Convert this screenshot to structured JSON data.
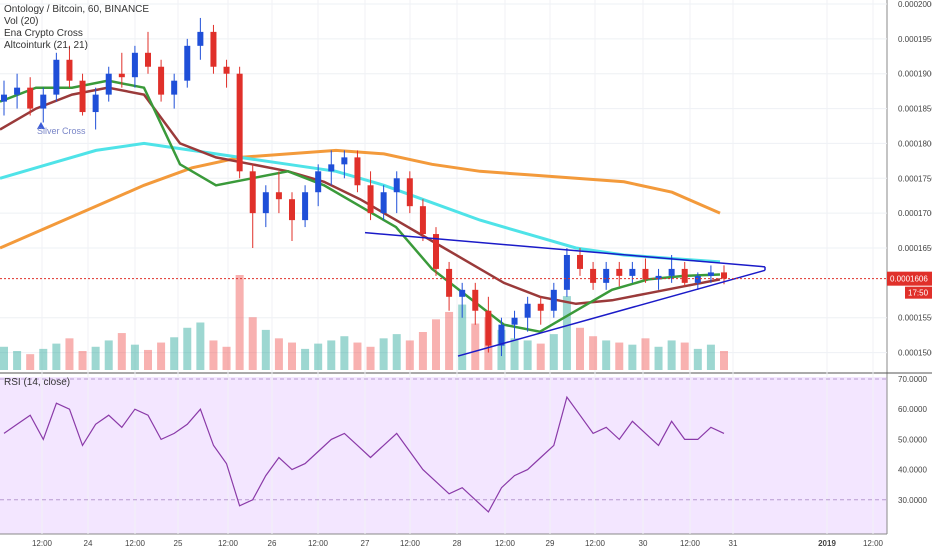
{
  "legend": {
    "title": "Ontology / Bitcoin, 60, BINANCE",
    "vol": "Vol (20)",
    "ena": "Ena Crypto Cross",
    "alt": "Altcointurk (21, 21)"
  },
  "rsi_legend": "RSI (14, close)",
  "annotations": {
    "silver_cross": "Silver Cross"
  },
  "price_axis": {
    "ticks": [
      "0.0002000",
      "0.0001950",
      "0.0001900",
      "0.0001850",
      "0.0001800",
      "0.0001750",
      "0.0001700",
      "0.0001650",
      "0.0001550",
      "0.0001500"
    ],
    "current_price": "0.0001606",
    "countdown": "17:50"
  },
  "rsi_axis": {
    "ticks": [
      "70.0000",
      "60.0000",
      "50.0000",
      "40.0000",
      "30.0000"
    ]
  },
  "time_axis": {
    "ticks": [
      "12:00",
      "24",
      "12:00",
      "25",
      "12:00",
      "26",
      "12:00",
      "27",
      "12:00",
      "28",
      "12:00",
      "29",
      "12:00",
      "30",
      "12:00",
      "31",
      "2019",
      "12:00"
    ]
  },
  "colors": {
    "up": "#26a69a",
    "down": "#ef5350",
    "candle_up": "#1f4fd8",
    "candle_down": "#e0302a",
    "ma_fast": "#3a9a3a",
    "ma_mid": "#9a3a3a",
    "ma_cyan": "#4fe3e8",
    "ma_orange": "#f39a3b",
    "triangle": "#1a1ac8",
    "rsi_line": "#8a3aa8",
    "rsi_bg": "#f3e6ff",
    "price_tag": "#e0302a"
  },
  "chart_data": {
    "type": "candlestick",
    "title": "Ontology / Bitcoin, 60, BINANCE",
    "ylim": [
      0.0001475,
      0.0002
    ],
    "rsi_ylim": [
      20,
      70
    ],
    "candles": [
      [
        0.000186,
        0.000189,
        0.000184,
        0.000187
      ],
      [
        0.000187,
        0.00019,
        0.000185,
        0.000188
      ],
      [
        0.000188,
        0.0001895,
        0.000184,
        0.000185
      ],
      [
        0.000185,
        0.000188,
        0.000183,
        0.000187
      ],
      [
        0.000187,
        0.000193,
        0.000186,
        0.000192
      ],
      [
        0.000192,
        0.000194,
        0.000188,
        0.000189
      ],
      [
        0.000189,
        0.00019,
        0.000184,
        0.0001845
      ],
      [
        0.0001845,
        0.000188,
        0.000182,
        0.000187
      ],
      [
        0.000187,
        0.000191,
        0.000186,
        0.00019
      ],
      [
        0.00019,
        0.000193,
        0.000188,
        0.0001895
      ],
      [
        0.0001895,
        0.000194,
        0.000188,
        0.000193
      ],
      [
        0.000193,
        0.000196,
        0.00019,
        0.000191
      ],
      [
        0.000191,
        0.000192,
        0.000186,
        0.000187
      ],
      [
        0.000187,
        0.00019,
        0.000185,
        0.000189
      ],
      [
        0.000189,
        0.000195,
        0.000188,
        0.000194
      ],
      [
        0.000194,
        0.000198,
        0.000192,
        0.000196
      ],
      [
        0.000196,
        0.000197,
        0.00019,
        0.000191
      ],
      [
        0.000191,
        0.000192,
        0.000188,
        0.00019
      ],
      [
        0.00019,
        0.000191,
        0.000175,
        0.000176
      ],
      [
        0.000176,
        0.000177,
        0.000165,
        0.00017
      ],
      [
        0.00017,
        0.000174,
        0.000168,
        0.000173
      ],
      [
        0.000173,
        0.000176,
        0.00017,
        0.000172
      ],
      [
        0.000172,
        0.000173,
        0.000166,
        0.000169
      ],
      [
        0.000169,
        0.000174,
        0.000168,
        0.000173
      ],
      [
        0.000173,
        0.000177,
        0.000171,
        0.000176
      ],
      [
        0.000176,
        0.000179,
        0.000174,
        0.000177
      ],
      [
        0.000177,
        0.000179,
        0.000175,
        0.000178
      ],
      [
        0.000178,
        0.000179,
        0.000173,
        0.000174
      ],
      [
        0.000174,
        0.000176,
        0.000169,
        0.00017
      ],
      [
        0.00017,
        0.000174,
        0.000169,
        0.000173
      ],
      [
        0.000173,
        0.000176,
        0.00017,
        0.000175
      ],
      [
        0.000175,
        0.000176,
        0.00017,
        0.000171
      ],
      [
        0.000171,
        0.000172,
        0.000166,
        0.000167
      ],
      [
        0.000167,
        0.000168,
        0.000161,
        0.000162
      ],
      [
        0.000162,
        0.000163,
        0.000156,
        0.000158
      ],
      [
        0.000158,
        0.00016,
        0.000155,
        0.000159
      ],
      [
        0.000159,
        0.00016,
        0.000154,
        0.000156
      ],
      [
        0.000156,
        0.000158,
        0.00015,
        0.000151
      ],
      [
        0.000151,
        0.000155,
        0.0001495,
        0.000154
      ],
      [
        0.000154,
        0.000156,
        0.000152,
        0.000155
      ],
      [
        0.000155,
        0.000158,
        0.000153,
        0.000157
      ],
      [
        0.000157,
        0.000158,
        0.000154,
        0.000156
      ],
      [
        0.000156,
        0.00016,
        0.000155,
        0.000159
      ],
      [
        0.000159,
        0.000165,
        0.000158,
        0.000164
      ],
      [
        0.000164,
        0.000165,
        0.000161,
        0.000162
      ],
      [
        0.000162,
        0.000163,
        0.000159,
        0.00016
      ],
      [
        0.00016,
        0.000163,
        0.000159,
        0.000162
      ],
      [
        0.000162,
        0.000163,
        0.0001595,
        0.000161
      ],
      [
        0.000161,
        0.000163,
        0.00016,
        0.000162
      ],
      [
        0.000162,
        0.0001635,
        0.00016,
        0.0001605
      ],
      [
        0.0001605,
        0.000162,
        0.000159,
        0.000161
      ],
      [
        0.000161,
        0.000164,
        0.00016,
        0.000162
      ],
      [
        0.000162,
        0.000163,
        0.0001595,
        0.00016
      ],
      [
        0.00016,
        0.0001615,
        0.000159,
        0.000161
      ],
      [
        0.000161,
        0.0001625,
        0.00016,
        0.0001615
      ],
      [
        0.0001615,
        0.0001625,
        0.0001598,
        0.0001606
      ]
    ],
    "volumes": [
      22,
      18,
      15,
      20,
      25,
      30,
      18,
      22,
      28,
      35,
      24,
      19,
      26,
      31,
      40,
      45,
      28,
      22,
      90,
      50,
      38,
      30,
      26,
      20,
      25,
      28,
      32,
      26,
      22,
      30,
      34,
      28,
      36,
      48,
      55,
      62,
      44,
      50,
      38,
      30,
      28,
      25,
      34,
      70,
      40,
      32,
      28,
      26,
      24,
      30,
      22,
      28,
      26,
      20,
      24,
      18
    ],
    "rsi": [
      52,
      55,
      58,
      50,
      62,
      60,
      48,
      55,
      58,
      54,
      60,
      58,
      50,
      52,
      55,
      60,
      48,
      42,
      28,
      30,
      38,
      44,
      40,
      42,
      46,
      50,
      52,
      48,
      44,
      48,
      52,
      46,
      40,
      36,
      32,
      34,
      30,
      26,
      34,
      38,
      40,
      44,
      48,
      64,
      58,
      52,
      54,
      50,
      56,
      52,
      48,
      56,
      50,
      50,
      54,
      52
    ],
    "ma_fast": [
      0.000186,
      0.000188,
      0.000188,
      0.000189,
      0.000188,
      0.000177,
      0.000174,
      0.000175,
      0.000176,
      0.000174,
      0.000171,
      0.000168,
      0.000162,
      0.000158,
      0.000154,
      0.000153,
      0.000156,
      0.000159,
      0.0001605,
      0.000161,
      0.0001612
    ],
    "ma_mid": [
      0.000182,
      0.000185,
      0.000187,
      0.000188,
      0.000187,
      0.00018,
      0.000178,
      0.000177,
      0.000176,
      0.0001745,
      0.000172,
      0.000169,
      0.000166,
      0.000163,
      0.00016,
      0.000158,
      0.000157,
      0.0001575,
      0.0001585,
      0.0001595,
      0.0001605
    ],
    "ma_cyan": [
      0.000175,
      0.000177,
      0.000179,
      0.00018,
      0.000179,
      0.000178,
      0.000177,
      0.000176,
      0.000174,
      0.0001715,
      0.000169,
      0.000167,
      0.000165,
      0.000164,
      0.0001635,
      0.000163
    ],
    "ma_orange": [
      0.000165,
      0.000168,
      0.000171,
      0.000174,
      0.0001765,
      0.000178,
      0.0001785,
      0.000179,
      0.0001785,
      0.000177,
      0.000176,
      0.0001755,
      0.000175,
      0.0001745,
      0.000173,
      0.00017
    ]
  }
}
